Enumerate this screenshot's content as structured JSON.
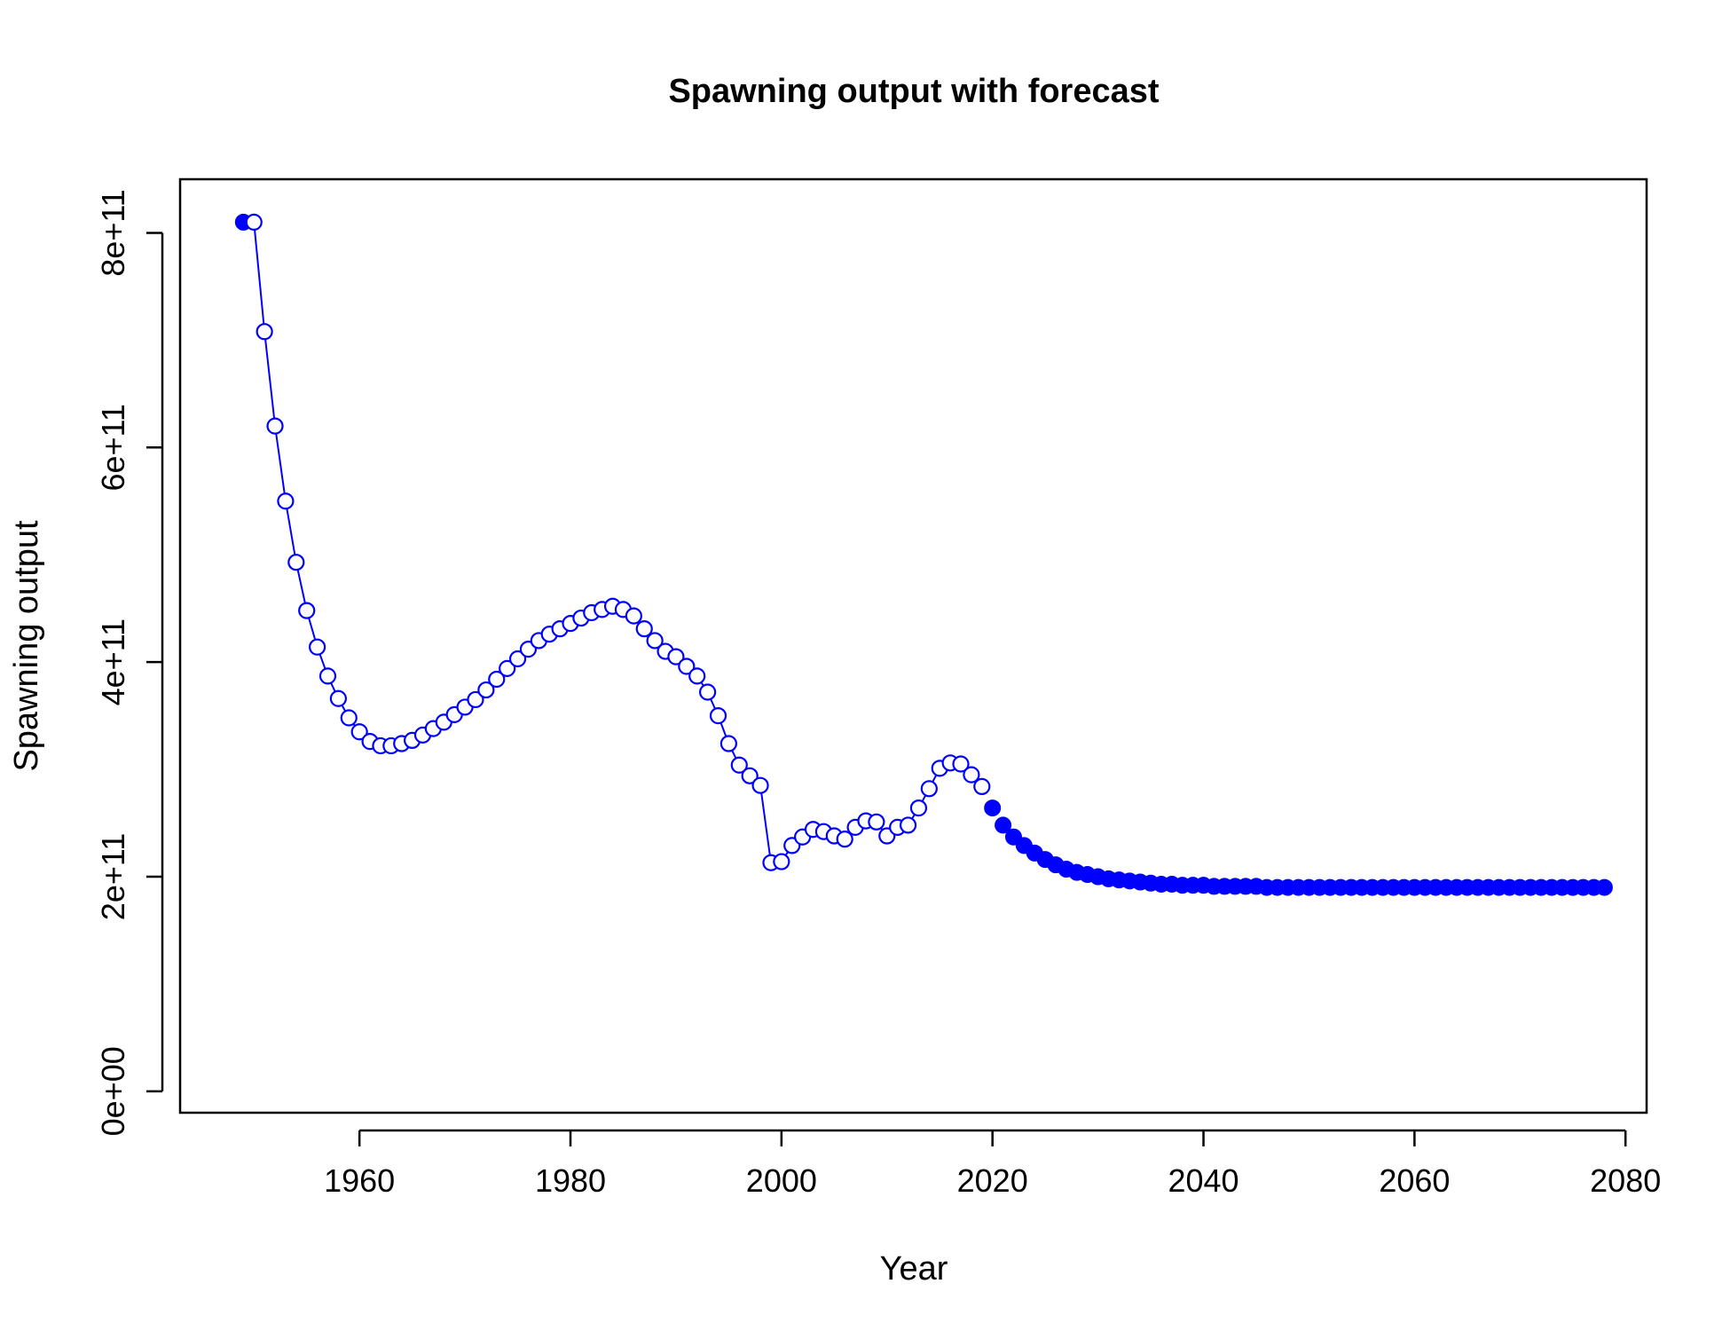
{
  "chart_data": {
    "type": "line",
    "title": "Spawning output with forecast",
    "xlabel": "Year",
    "ylabel": "Spawning output",
    "xlim": [
      1943,
      2082
    ],
    "ylim": [
      -20000000000.0,
      850000000000.0
    ],
    "x_ticks": [
      1960,
      1980,
      2000,
      2020,
      2040,
      2060,
      2080
    ],
    "x_tick_labels": [
      "1960",
      "1980",
      "2000",
      "2020",
      "2040",
      "2060",
      "2080"
    ],
    "y_ticks": [
      0,
      200000000000.0,
      400000000000.0,
      600000000000.0,
      800000000000.0
    ],
    "y_tick_labels": [
      "0e+00",
      "2e+11",
      "4e+11",
      "6e+11",
      "8e+11"
    ],
    "grid": false,
    "legend": "none",
    "color": "#0000ff",
    "series": [
      {
        "marker": "filled",
        "line": false,
        "points": [
          [
            1949,
            810000000000.0
          ]
        ]
      },
      {
        "marker": "open",
        "line": true,
        "points": [
          [
            1950,
            810000000000.0
          ],
          [
            1951,
            708000000000.0
          ],
          [
            1952,
            620000000000.0
          ],
          [
            1953,
            550000000000.0
          ],
          [
            1954,
            493000000000.0
          ],
          [
            1955,
            448000000000.0
          ],
          [
            1956,
            414000000000.0
          ],
          [
            1957,
            387000000000.0
          ],
          [
            1958,
            366000000000.0
          ],
          [
            1959,
            348000000000.0
          ],
          [
            1960,
            335000000000.0
          ],
          [
            1961,
            326000000000.0
          ],
          [
            1962,
            322000000000.0
          ],
          [
            1963,
            322000000000.0
          ],
          [
            1964,
            324000000000.0
          ],
          [
            1965,
            327000000000.0
          ],
          [
            1966,
            332000000000.0
          ],
          [
            1967,
            338000000000.0
          ],
          [
            1968,
            344000000000.0
          ],
          [
            1969,
            351000000000.0
          ],
          [
            1970,
            358000000000.0
          ],
          [
            1971,
            365000000000.0
          ],
          [
            1972,
            374000000000.0
          ],
          [
            1973,
            384000000000.0
          ],
          [
            1974,
            394000000000.0
          ],
          [
            1975,
            403000000000.0
          ],
          [
            1976,
            412000000000.0
          ],
          [
            1977,
            420000000000.0
          ],
          [
            1978,
            426000000000.0
          ],
          [
            1979,
            431000000000.0
          ],
          [
            1980,
            436000000000.0
          ],
          [
            1981,
            441000000000.0
          ],
          [
            1982,
            446000000000.0
          ],
          [
            1983,
            449000000000.0
          ],
          [
            1984,
            452000000000.0
          ],
          [
            1985,
            449000000000.0
          ],
          [
            1986,
            443000000000.0
          ],
          [
            1987,
            431000000000.0
          ],
          [
            1988,
            420000000000.0
          ],
          [
            1989,
            410000000000.0
          ],
          [
            1990,
            405000000000.0
          ],
          [
            1991,
            396000000000.0
          ],
          [
            1992,
            387000000000.0
          ],
          [
            1993,
            372000000000.0
          ],
          [
            1994,
            350000000000.0
          ],
          [
            1995,
            324000000000.0
          ],
          [
            1996,
            304000000000.0
          ],
          [
            1997,
            294000000000.0
          ],
          [
            1998,
            285000000000.0
          ],
          [
            1999,
            213000000000.0
          ],
          [
            2000,
            214000000000.0
          ],
          [
            2001,
            229000000000.0
          ],
          [
            2002,
            237000000000.0
          ],
          [
            2003,
            244000000000.0
          ],
          [
            2004,
            242000000000.0
          ],
          [
            2005,
            238000000000.0
          ],
          [
            2006,
            235000000000.0
          ],
          [
            2007,
            246000000000.0
          ],
          [
            2008,
            252000000000.0
          ],
          [
            2009,
            251000000000.0
          ],
          [
            2010,
            238000000000.0
          ],
          [
            2011,
            246000000000.0
          ],
          [
            2012,
            248000000000.0
          ],
          [
            2013,
            264000000000.0
          ],
          [
            2014,
            282000000000.0
          ],
          [
            2015,
            301000000000.0
          ],
          [
            2016,
            306000000000.0
          ],
          [
            2017,
            305000000000.0
          ],
          [
            2018,
            295000000000.0
          ],
          [
            2019,
            284000000000.0
          ]
        ]
      },
      {
        "marker": "filled",
        "line": false,
        "points": [
          [
            2020,
            264000000000.0
          ],
          [
            2021,
            248000000000.0
          ],
          [
            2022,
            237000000000.0
          ],
          [
            2023,
            229000000000.0
          ],
          [
            2024,
            222000000000.0
          ],
          [
            2025,
            216000000000.0
          ],
          [
            2026,
            211000000000.0
          ],
          [
            2027,
            207000000000.0
          ],
          [
            2028,
            204000000000.0
          ],
          [
            2029,
            202000000000.0
          ],
          [
            2030,
            200000000000.0
          ],
          [
            2031,
            198000000000.0
          ],
          [
            2032,
            197000000000.0
          ],
          [
            2033,
            196000000000.0
          ],
          [
            2034,
            195000000000.0
          ],
          [
            2035,
            194000000000.0
          ],
          [
            2036,
            193000000000.0
          ],
          [
            2037,
            193000000000.0
          ],
          [
            2038,
            192000000000.0
          ],
          [
            2039,
            192000000000.0
          ],
          [
            2040,
            192000000000.0
          ],
          [
            2041,
            191000000000.0
          ],
          [
            2042,
            191000000000.0
          ],
          [
            2043,
            191000000000.0
          ],
          [
            2044,
            191000000000.0
          ],
          [
            2045,
            191000000000.0
          ],
          [
            2046,
            190000000000.0
          ],
          [
            2047,
            190000000000.0
          ],
          [
            2048,
            190000000000.0
          ],
          [
            2049,
            190000000000.0
          ],
          [
            2050,
            190000000000.0
          ],
          [
            2051,
            190000000000.0
          ],
          [
            2052,
            190000000000.0
          ],
          [
            2053,
            190000000000.0
          ],
          [
            2054,
            190000000000.0
          ],
          [
            2055,
            190000000000.0
          ],
          [
            2056,
            190000000000.0
          ],
          [
            2057,
            190000000000.0
          ],
          [
            2058,
            190000000000.0
          ],
          [
            2059,
            190000000000.0
          ],
          [
            2060,
            190000000000.0
          ],
          [
            2061,
            190000000000.0
          ],
          [
            2062,
            190000000000.0
          ],
          [
            2063,
            190000000000.0
          ],
          [
            2064,
            190000000000.0
          ],
          [
            2065,
            190000000000.0
          ],
          [
            2066,
            190000000000.0
          ],
          [
            2067,
            190000000000.0
          ],
          [
            2068,
            190000000000.0
          ],
          [
            2069,
            190000000000.0
          ],
          [
            2070,
            190000000000.0
          ],
          [
            2071,
            190000000000.0
          ],
          [
            2072,
            190000000000.0
          ],
          [
            2073,
            190000000000.0
          ],
          [
            2074,
            190000000000.0
          ],
          [
            2075,
            190000000000.0
          ],
          [
            2076,
            190000000000.0
          ],
          [
            2077,
            190000000000.0
          ],
          [
            2078,
            190000000000.0
          ]
        ]
      }
    ]
  }
}
